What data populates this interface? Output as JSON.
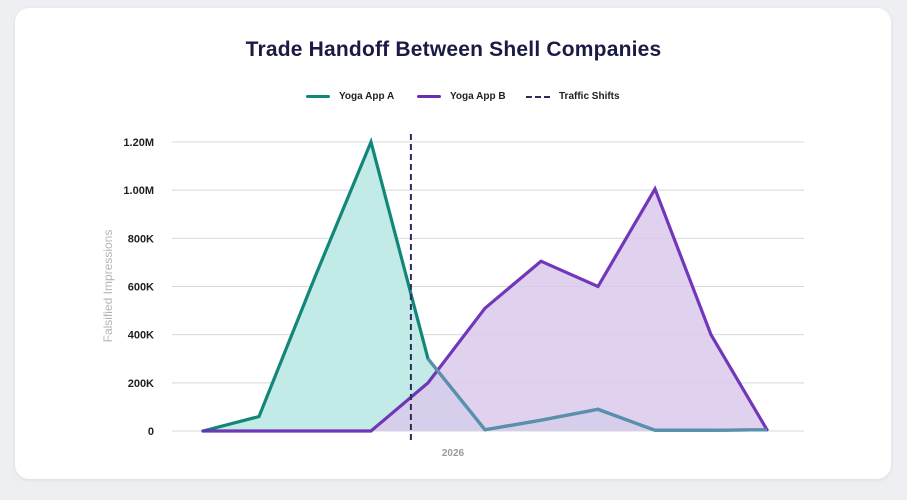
{
  "chart_data": {
    "type": "area",
    "title": "Trade Handoff Between Shell Companies",
    "xlabel": "",
    "ylabel": "Falsified Impressions",
    "ylim": [
      0,
      1200000
    ],
    "yticks": [
      0,
      200000,
      400000,
      600000,
      800000,
      1000000,
      1200000
    ],
    "ytick_labels": [
      "0",
      "200K",
      "400K",
      "600K",
      "800K",
      "1.00M",
      "1.20M"
    ],
    "x_tick_labels": [
      "2026"
    ],
    "x": [
      0,
      1,
      2,
      3,
      4,
      5,
      6,
      7,
      8,
      9,
      10
    ],
    "legend_position": "top",
    "grid": true,
    "series": [
      {
        "name": "Yoga App A",
        "color": "#13867a",
        "fill": "#bfe9e5",
        "values": [
          0,
          60000,
          640000,
          1200000,
          300000,
          5000,
          45000,
          90000,
          3000,
          3000,
          5000
        ]
      },
      {
        "name": "Yoga App B",
        "color": "#6a2db5",
        "fill": "#dac9ec",
        "values": [
          0,
          0,
          0,
          0,
          200000,
          510000,
          705000,
          600000,
          1005000,
          400000,
          5000
        ]
      }
    ],
    "annotation": {
      "name": "Traffic Shifts",
      "x": 3.7,
      "color": "#2d2b5a",
      "style": "dashed"
    }
  }
}
